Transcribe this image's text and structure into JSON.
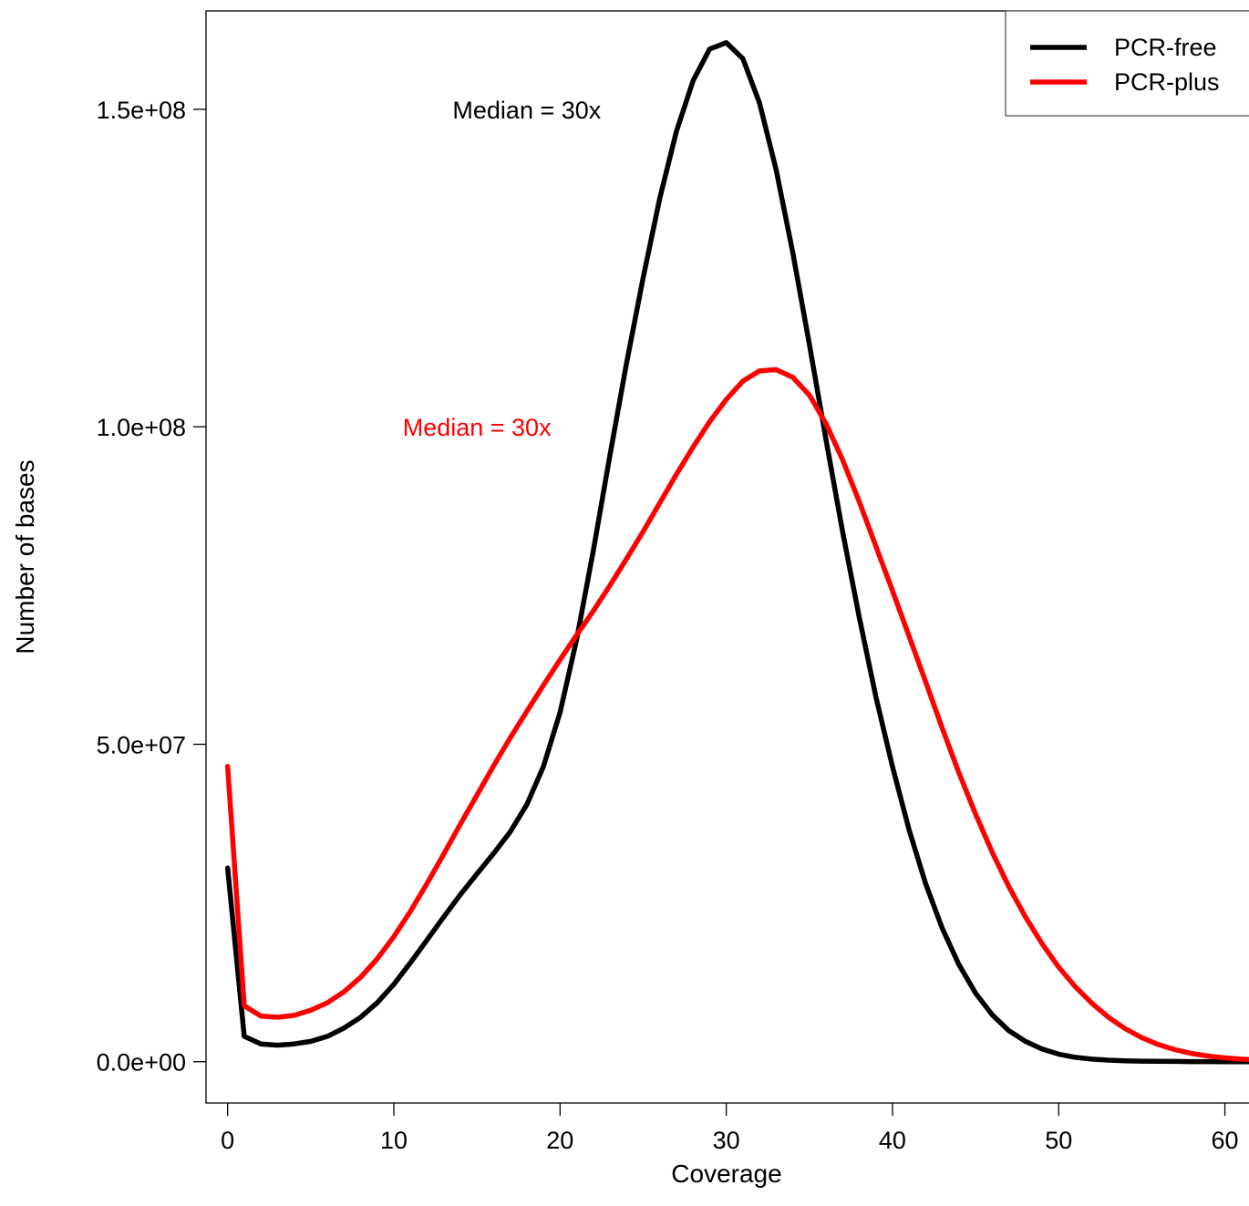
{
  "chart_data": {
    "type": "line",
    "title": "",
    "xlabel": "Coverage",
    "ylabel": "Number of bases",
    "xlim": [
      -1.3,
      62
    ],
    "ylim": [
      -6500000,
      165500000
    ],
    "xticks": [
      0,
      10,
      20,
      30,
      40,
      50,
      60
    ],
    "xtick_labels": [
      "0",
      "10",
      "20",
      "30",
      "40",
      "50",
      "60"
    ],
    "yticks": [
      0,
      50000000,
      100000000,
      150000000
    ],
    "ytick_labels": [
      "0.0e+00",
      "5.0e+07",
      "1.0e+08",
      "1.5e+08"
    ],
    "grid": false,
    "legend": {
      "position": "top-right"
    },
    "series": [
      {
        "name": "PCR-free",
        "color": "#000000",
        "x": [
          0,
          1,
          2,
          3,
          4,
          5,
          6,
          7,
          8,
          9,
          10,
          11,
          12,
          13,
          14,
          15,
          16,
          17,
          18,
          19,
          20,
          21,
          22,
          23,
          24,
          25,
          26,
          27,
          28,
          29,
          30,
          31,
          32,
          33,
          34,
          35,
          36,
          37,
          38,
          39,
          40,
          41,
          42,
          43,
          44,
          45,
          46,
          47,
          48,
          49,
          50,
          51,
          52,
          53,
          54,
          55,
          56,
          57,
          58,
          59,
          60,
          61,
          62
        ],
        "y": [
          30500000,
          4000000,
          2800000,
          2600000,
          2800000,
          3200000,
          4000000,
          5300000,
          7000000,
          9300000,
          12200000,
          15600000,
          19200000,
          22800000,
          26300000,
          29600000,
          32800000,
          36200000,
          40500000,
          46500000,
          55000000,
          66500000,
          80500000,
          95500000,
          110000000,
          123500000,
          136000000,
          146500000,
          154500000,
          159500000,
          160500000,
          158000000,
          151000000,
          140500000,
          127500000,
          113000000,
          98000000,
          83500000,
          70000000,
          57500000,
          46500000,
          36500000,
          28000000,
          21000000,
          15300000,
          10800000,
          7400000,
          4900000,
          3200000,
          2000000,
          1200000,
          700000,
          400000,
          250000,
          150000,
          90000,
          60000,
          40000,
          25000,
          15000,
          10000,
          6000,
          4000
        ]
      },
      {
        "name": "PCR-plus",
        "color": "#ff0000",
        "x": [
          0,
          1,
          2,
          3,
          4,
          5,
          6,
          7,
          8,
          9,
          10,
          11,
          12,
          13,
          14,
          15,
          16,
          17,
          18,
          19,
          20,
          21,
          22,
          23,
          24,
          25,
          26,
          27,
          28,
          29,
          30,
          31,
          32,
          33,
          34,
          35,
          36,
          37,
          38,
          39,
          40,
          41,
          42,
          43,
          44,
          45,
          46,
          47,
          48,
          49,
          50,
          51,
          52,
          53,
          54,
          55,
          56,
          57,
          58,
          59,
          60,
          61,
          62
        ],
        "y": [
          46500000,
          8800000,
          7200000,
          7000000,
          7300000,
          8100000,
          9300000,
          11000000,
          13300000,
          16200000,
          19700000,
          23700000,
          28100000,
          32700000,
          37400000,
          42000000,
          46600000,
          51000000,
          55200000,
          59300000,
          63300000,
          67200000,
          71000000,
          75000000,
          79200000,
          83500000,
          88000000,
          92500000,
          96800000,
          100800000,
          104300000,
          107200000,
          108800000,
          109000000,
          107800000,
          105000000,
          100500000,
          94800000,
          88200000,
          81200000,
          74200000,
          67000000,
          59800000,
          52500000,
          45500000,
          39000000,
          33000000,
          27600000,
          22800000,
          18600000,
          14900000,
          11800000,
          9200000,
          7000000,
          5200000,
          3800000,
          2700000,
          1900000,
          1300000,
          900000,
          600000,
          400000,
          300000
        ]
      }
    ],
    "annotations": [
      {
        "text": "Median = 30x",
        "x": 18,
        "y": 150000000,
        "color": "#000000"
      },
      {
        "text": "Median = 30x",
        "x": 15,
        "y": 100000000,
        "color": "#ff0000"
      }
    ]
  }
}
